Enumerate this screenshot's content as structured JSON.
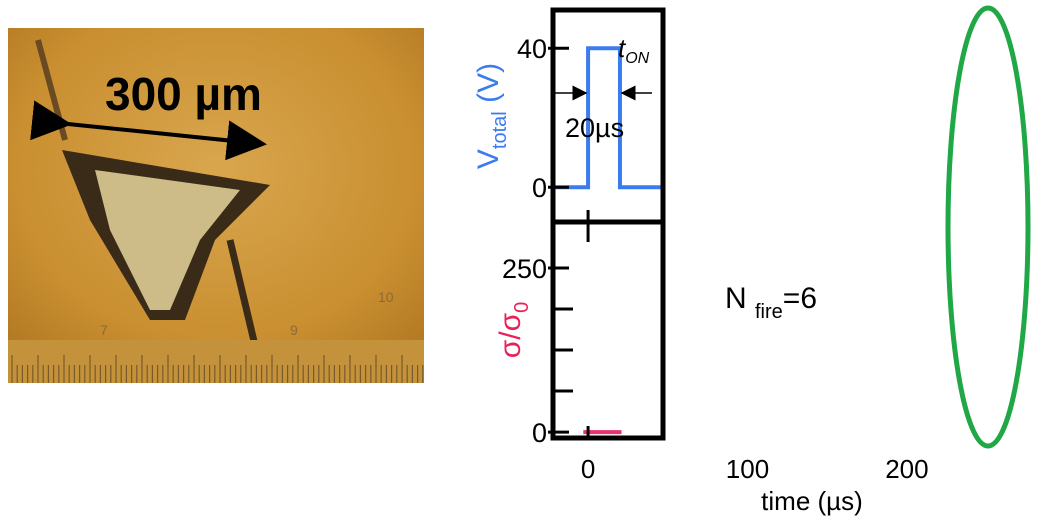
{
  "photo": {
    "scale_label": "300 µm",
    "ruler_labels": [
      "7",
      "9",
      "10"
    ]
  },
  "fire_label": {
    "text": "N ",
    "sub": "fire",
    "suffix": "=6"
  },
  "chart_data": [
    {
      "type": "line",
      "ylabel": "V",
      "ylabel_sub": "total",
      "ylabel_unit": " (V)",
      "ylabel_color": "#3a7cf0",
      "xlim": [
        -22,
        47
      ],
      "ylim": [
        -10,
        51
      ],
      "yticks": [
        0,
        40
      ],
      "xticks": [
        0
      ],
      "annotation": {
        "text": "t",
        "sub": "ON",
        "width_label": "20µs"
      },
      "series": [
        {
          "color": "#3a7cf0",
          "x": [
            -22,
            0,
            0,
            20,
            20,
            47
          ],
          "values": [
            0,
            0,
            40,
            40,
            0,
            0
          ]
        }
      ]
    },
    {
      "type": "line",
      "ylabel": "σ/σ",
      "ylabel_sub": "0",
      "ylabel_color": "#e8235a",
      "xlim": [
        -22,
        47
      ],
      "ylim": [
        -9,
        320
      ],
      "yticks": [
        0,
        250
      ],
      "minor_yticks": [
        62.5,
        125,
        187.5
      ],
      "xticks": [
        0,
        100,
        200
      ],
      "xlabel": "time (µs)",
      "series": [
        {
          "color": "#e8336b",
          "x": [
            -3,
            21
          ],
          "values": [
            0,
            0
          ]
        }
      ]
    }
  ]
}
